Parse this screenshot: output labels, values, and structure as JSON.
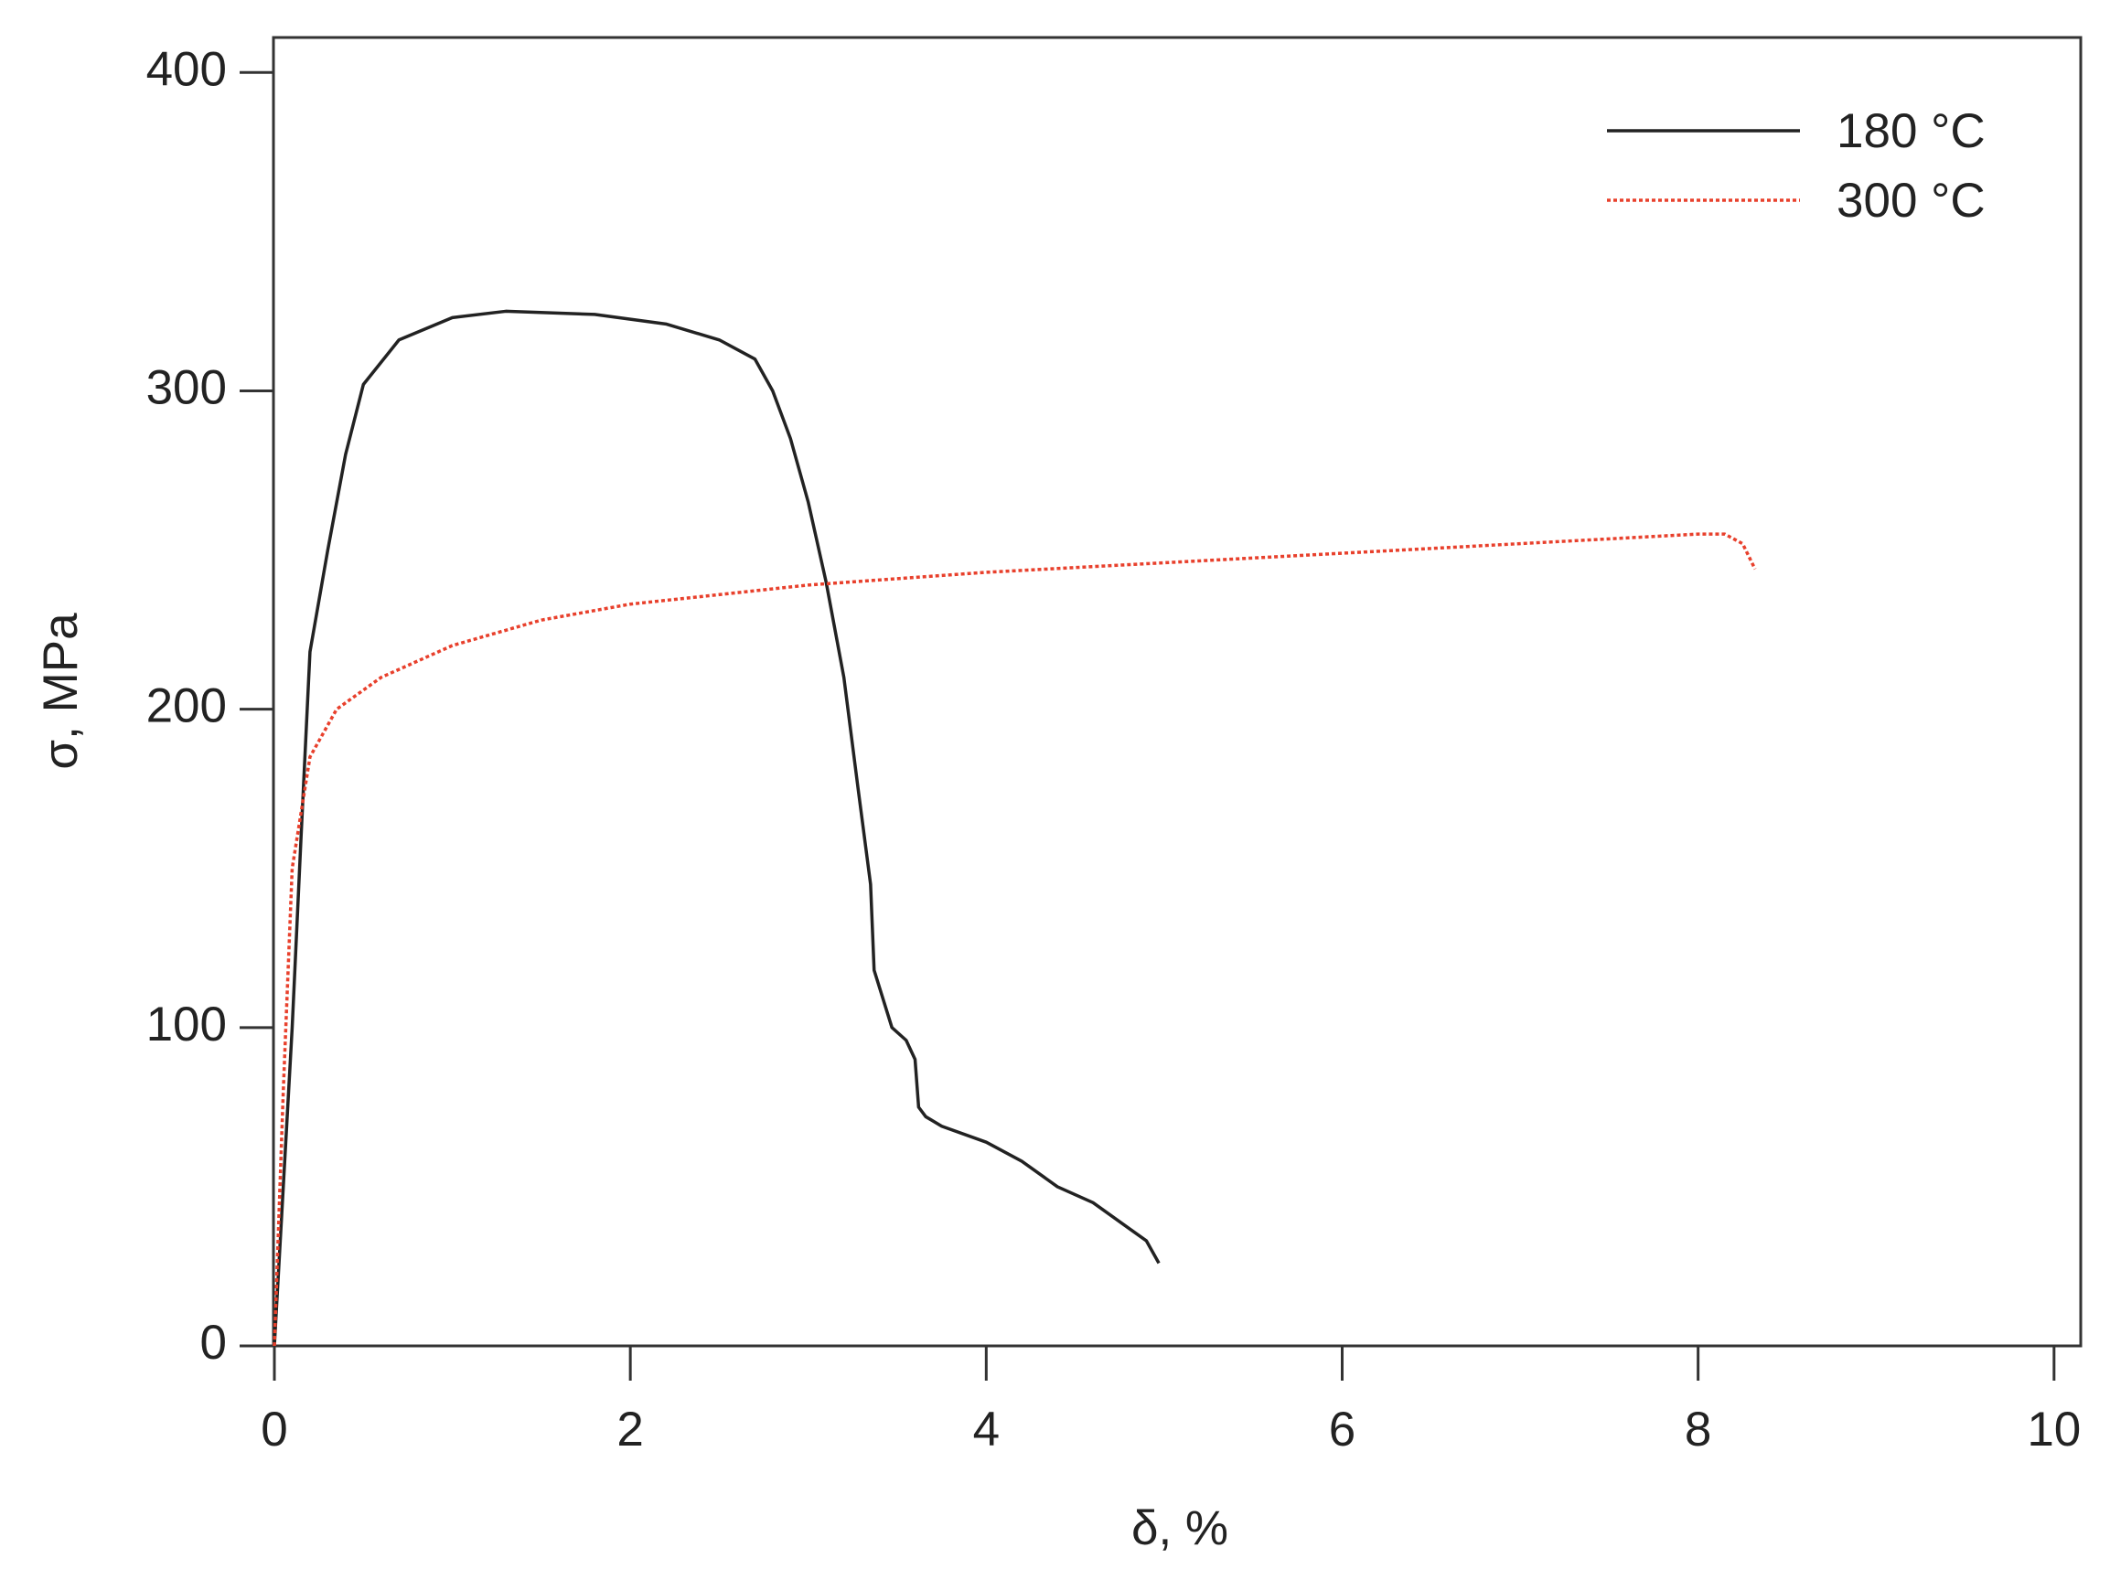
{
  "chart_data": {
    "type": "line",
    "xlabel": "δ, %",
    "ylabel": "σ, MPa",
    "xlim": [
      0,
      10.15
    ],
    "ylim": [
      0,
      411
    ],
    "xticks": [
      0,
      2,
      4,
      6,
      8,
      10
    ],
    "yticks": [
      0,
      100,
      200,
      300,
      400
    ],
    "legend": "upper right",
    "series": [
      {
        "name": "180 °C",
        "color": "#222222",
        "style": "solid",
        "x": [
          0,
          0.1,
          0.15,
          0.2,
          0.3,
          0.4,
          0.5,
          0.7,
          1.0,
          1.3,
          1.8,
          2.2,
          2.5,
          2.7,
          2.8,
          2.9,
          3.0,
          3.1,
          3.2,
          3.28,
          3.35,
          3.37,
          3.47,
          3.55,
          3.6,
          3.62,
          3.66,
          3.75,
          4.0,
          4.2,
          4.4,
          4.6,
          4.8,
          4.9,
          4.97
        ],
        "values": [
          0,
          100,
          160,
          218,
          250,
          280,
          302,
          316,
          323,
          325,
          324,
          321,
          316,
          310,
          300,
          285,
          265,
          240,
          210,
          175,
          145,
          118,
          100,
          96,
          90,
          75,
          72,
          69,
          64,
          58,
          50,
          45,
          37,
          33,
          26
        ]
      },
      {
        "name": "300 °C",
        "color": "#e8402c",
        "style": "dotted",
        "x": [
          0,
          0.05,
          0.1,
          0.2,
          0.35,
          0.6,
          1.0,
          1.5,
          2.0,
          3.0,
          4.0,
          5.0,
          6.0,
          7.0,
          7.5,
          8.0,
          8.15,
          8.25,
          8.32
        ],
        "values": [
          0,
          80,
          150,
          185,
          200,
          210,
          220,
          228,
          233,
          239,
          243,
          246,
          249,
          252,
          253.5,
          255,
          255,
          252,
          244
        ]
      }
    ]
  }
}
